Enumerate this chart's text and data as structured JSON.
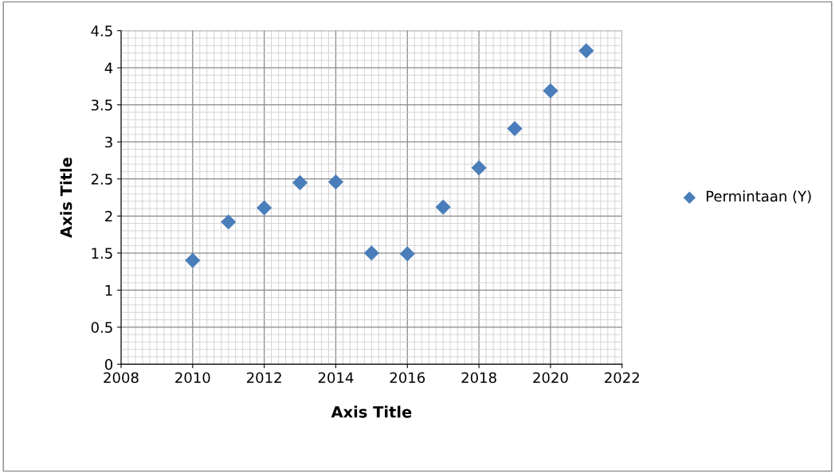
{
  "chart_data": {
    "type": "scatter",
    "xlabel": "Axis Title",
    "ylabel": "Axis Title",
    "x": [
      2010,
      2011,
      2012,
      2013,
      2014,
      2015,
      2016,
      2017,
      2018,
      2019,
      2020,
      2021
    ],
    "series": [
      {
        "name": "Permintaan (Y)",
        "color": "#4a7ebb",
        "values": [
          1.4,
          1.92,
          2.11,
          2.45,
          2.46,
          1.5,
          1.49,
          2.12,
          2.65,
          3.18,
          3.69,
          4.23
        ]
      }
    ],
    "xlim": [
      2008,
      2022
    ],
    "xticks": [
      2008,
      2010,
      2012,
      2014,
      2016,
      2018,
      2020,
      2022
    ],
    "ylim": [
      0,
      4.5
    ],
    "yticks": [
      0,
      0.5,
      1,
      1.5,
      2,
      2.5,
      3,
      3.5,
      4,
      4.5
    ],
    "grid": true,
    "legend": "right",
    "marker": "diamond"
  }
}
